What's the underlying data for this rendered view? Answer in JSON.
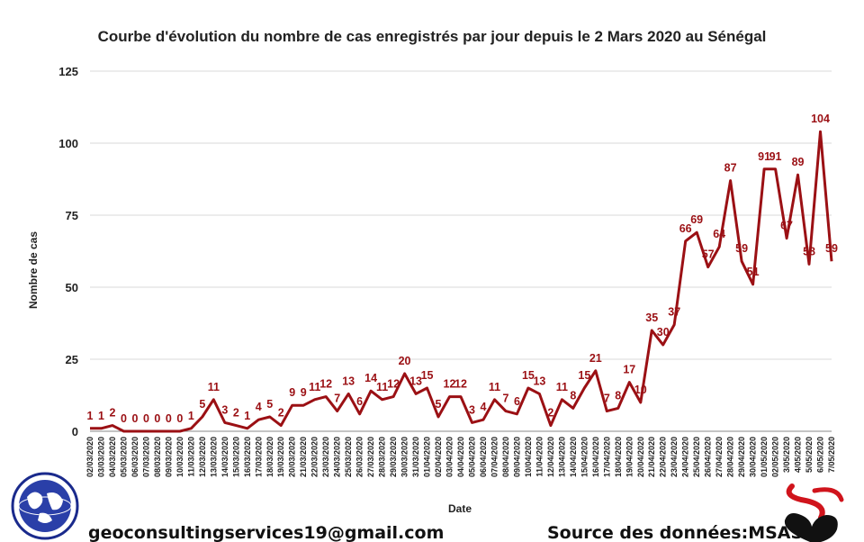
{
  "footer": {
    "email": "geoconsultingservices19@gmail.com",
    "source": "Source des données:MSAS",
    "logo_text": "GEO CONSULTING SERVICES"
  },
  "chart_data": {
    "type": "line",
    "title": "Courbe d'évolution du nombre de cas enregistrés par jour depuis le 2 Mars 2020 au Sénégal",
    "xlabel": "Date",
    "ylabel": "Nombre de cas",
    "ylim": [
      0,
      125
    ],
    "yticks": [
      0,
      25,
      50,
      75,
      100,
      125
    ],
    "grid": true,
    "line_color": "#9b1014",
    "categories": [
      "02/03/2020",
      "03/03/2020",
      "04/03/2020",
      "05/03/2020",
      "06/03/2020",
      "07/03/2020",
      "08/03/2020",
      "09/03/2020",
      "10/03/2020",
      "11/03/2020",
      "12/03/2020",
      "13/03/2020",
      "14/03/2020",
      "15/03/2020",
      "16/03/2020",
      "17/03/2020",
      "18/03/2020",
      "19/03/2020",
      "20/03/2020",
      "21/03/2020",
      "22/03/2020",
      "23/03/2020",
      "24/03/2020",
      "25/03/2020",
      "26/03/2020",
      "27/03/2020",
      "28/03/2020",
      "29/03/2020",
      "30/03/2020",
      "31/03/2020",
      "01/04/2020",
      "02/04/2020",
      "03/04/2020",
      "04/04/2020",
      "05/04/2020",
      "06/04/2020",
      "07/04/2020",
      "08/04/2020",
      "09/04/2020",
      "10/04/2020",
      "11/04/2020",
      "12/04/2020",
      "13/04/2020",
      "14/04/2020",
      "15/04/2020",
      "16/04/2020",
      "17/04/2020",
      "18/04/2020",
      "19/04/2020",
      "20/04/2020",
      "21/04/2020",
      "22/04/2020",
      "23/04/2020",
      "24/04/2020",
      "25/04/2020",
      "26/04/2020",
      "27/04/2020",
      "28/04/2020",
      "29/04/2020",
      "30/04/2020",
      "01/05/2020",
      "02/05/2020",
      "3/05/2020",
      "4/05/2020",
      "5/05/2020",
      "6/05/2020",
      "7/05/2020"
    ],
    "values": [
      1,
      1,
      2,
      0,
      0,
      0,
      0,
      0,
      0,
      1,
      5,
      11,
      3,
      2,
      1,
      4,
      5,
      2,
      9,
      9,
      11,
      12,
      7,
      13,
      6,
      14,
      11,
      12,
      20,
      13,
      15,
      5,
      12,
      12,
      3,
      4,
      11,
      7,
      6,
      15,
      13,
      2,
      11,
      8,
      15,
      21,
      7,
      8,
      17,
      10,
      35,
      30,
      37,
      66,
      69,
      57,
      64,
      87,
      59,
      51,
      91,
      91,
      67,
      89,
      58,
      104,
      59
    ]
  }
}
